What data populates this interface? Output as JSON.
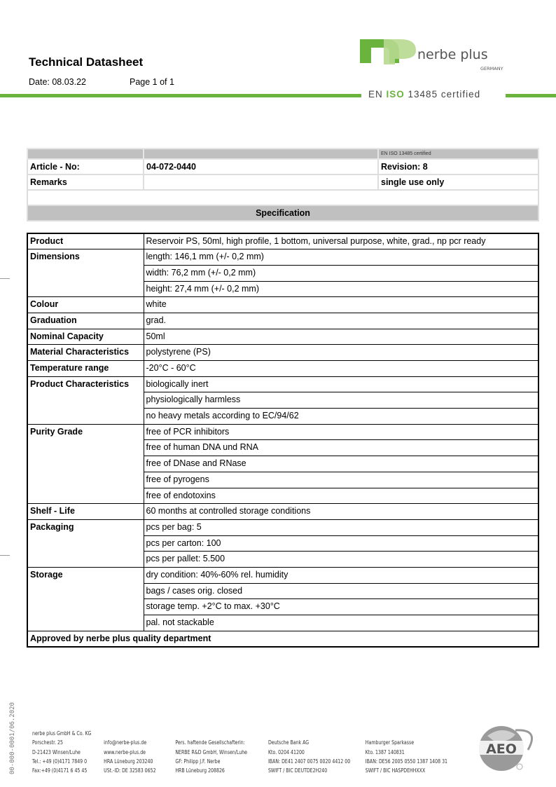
{
  "header": {
    "title": "Technical Datasheet",
    "date": "Date: 08.03.22",
    "page": "Page 1 of 1",
    "iso_prefix": "EN ",
    "iso_mid": "ISO",
    "iso_suffix": " 13485 certified",
    "brand": "nerbe plus",
    "brand_country": "GERMANY",
    "brand_color": "#6ab43e"
  },
  "info": {
    "certified_small": "EN ISO 13485 certified",
    "article_label": "Article - No:",
    "article_value": "04-072-0440",
    "revision": "Revision: 8",
    "remarks_label": "Remarks",
    "remarks_value": "single use only",
    "spec_header": "Specification"
  },
  "spec": [
    {
      "label": "Product",
      "values": [
        "Reservoir PS, 50ml, high profile, 1 bottom,  universal purpose, white, grad., np pcr ready"
      ]
    },
    {
      "label": "Dimensions",
      "values": [
        "length: 146,1 mm  (+/- 0,2 mm)",
        "width: 76,2 mm (+/- 0,2 mm)",
        "height: 27,4 mm (+/- 0,2 mm)"
      ]
    },
    {
      "label": "Colour",
      "values": [
        "white"
      ]
    },
    {
      "label": "Graduation",
      "values": [
        "grad."
      ]
    },
    {
      "label": "Nominal Capacity",
      "values": [
        "50ml"
      ]
    },
    {
      "label": "Material Characteristics",
      "values": [
        "polystyrene (PS)"
      ]
    },
    {
      "label": "Temperature range",
      "values": [
        "-20°C - 60°C"
      ]
    },
    {
      "label": "Product Characteristics",
      "values": [
        "biologically inert",
        "physiologically harmless",
        "no heavy metals according to EC/94/62"
      ]
    },
    {
      "label": "Purity Grade",
      "values": [
        "free of PCR inhibitors",
        "free of human DNA und RNA",
        "free of DNase and RNase",
        "free of pyrogens",
        "free of endotoxins"
      ]
    },
    {
      "label": "Shelf - Life",
      "values": [
        "60 months at controlled storage conditions"
      ]
    },
    {
      "label": "Packaging",
      "values": [
        "pcs per bag: 5",
        "pcs per carton: 100",
        "pcs per pallet: 5.500"
      ]
    },
    {
      "label": "Storage",
      "values": [
        "dry condition: 40%-60% rel. humidity",
        "bags / cases orig. closed",
        "storage temp. +2°C to max. +30°C",
        "pal. not stackable"
      ]
    }
  ],
  "approved": "Approved by nerbe plus quality department",
  "footer": {
    "version": "00-000-0001/06.2020",
    "columns": [
      [
        "nerbe plus GmbH & Co. KG",
        "Porschestr. 25",
        "D-21423 Winsen/Luhe",
        "Tel.: +49 (0)4171 7849 0",
        "Fax:+49 (0)4171 6 45 45"
      ],
      [
        "",
        "info@nerbe-plus.de",
        "www.nerbe-plus.de",
        "HRA Lüneburg 203240",
        "USt.-ID: DE 32583 0652"
      ],
      [
        "",
        "Pers. haftende Gesellschafterin:",
        "NERBE R&D GmbH, Winsen/Luhe",
        "GF: Philipp J.F. Nerbe",
        "HRB Lüneburg 208826"
      ],
      [
        "",
        "Deutsche Bank AG",
        "Kto. 0204 41200",
        "IBAN: DE41 2407 0075 0020 4412 00",
        "SWIFT / BIC DEUTDE2H240"
      ],
      [
        "",
        "Hamburger Sparkasse",
        "Kto. 1387 140831",
        "IBAN: DE56 2005 0550 1387 1408 31",
        "SWIFT / BIC HASPDEHHXXX"
      ]
    ],
    "aeo": "AEO"
  }
}
